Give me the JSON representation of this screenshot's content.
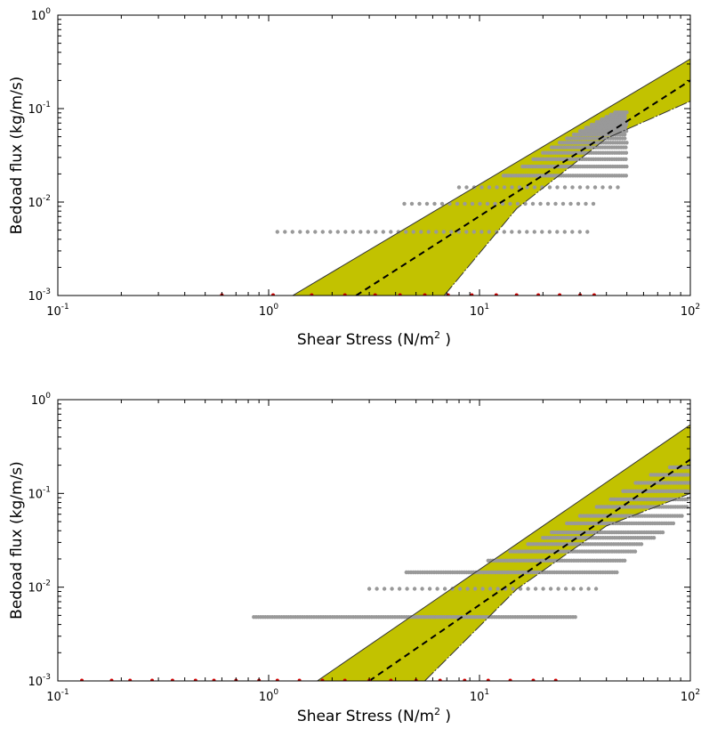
{
  "chart_data": [
    {
      "type": "scatter",
      "title": "",
      "xlabel": "Shear Stress (N/m",
      "xlabel_exp": "2",
      "xlabel_suffix": " )",
      "ylabel": "Bedoad flux (kg/m/s)",
      "xscale": "log",
      "yscale": "log",
      "xlim": [
        0.1,
        100
      ],
      "ylim": [
        0.001,
        1
      ],
      "xticks": [
        {
          "base": "10",
          "exp": "-1"
        },
        {
          "base": "10",
          "exp": "0"
        },
        {
          "base": "10",
          "exp": "1"
        },
        {
          "base": "10",
          "exp": "2"
        }
      ],
      "yticks": [
        {
          "base": "10",
          "exp": "-3"
        },
        {
          "base": "10",
          "exp": "-2"
        },
        {
          "base": "10",
          "exp": "-1"
        },
        {
          "base": "10",
          "exp": "0"
        }
      ],
      "grid": false,
      "fit": {
        "style": "dashed",
        "color": "#000000",
        "points": [
          [
            2.6,
            0.001
          ],
          [
            100,
            0.2
          ]
        ]
      },
      "band": {
        "color": "#c2c200",
        "edge": "#333333",
        "upper": [
          [
            1.3,
            0.001
          ],
          [
            100,
            0.34
          ]
        ],
        "lower": [
          [
            6.8,
            0.001
          ],
          [
            15,
            0.0085
          ],
          [
            40,
            0.048
          ],
          [
            100,
            0.12
          ]
        ]
      },
      "observed_color": "#999999",
      "observed_rows": [
        {
          "y": 0.0048,
          "x_from": 1.1,
          "x_to": 35,
          "pattern": "sparse"
        },
        {
          "y": 0.0096,
          "x_from": 4.4,
          "x_to": 36,
          "pattern": "sparse"
        },
        {
          "y": 0.0144,
          "x_from": 8.0,
          "x_to": 47,
          "pattern": "sparse"
        },
        {
          "y": 0.0192,
          "x_from": 13,
          "x_to": 50,
          "pattern": "dense"
        },
        {
          "y": 0.024,
          "x_from": 16,
          "x_to": 50,
          "pattern": "dense"
        },
        {
          "y": 0.0288,
          "x_from": 18,
          "x_to": 50,
          "pattern": "dense"
        },
        {
          "y": 0.0336,
          "x_from": 20,
          "x_to": 50,
          "pattern": "dense"
        },
        {
          "y": 0.0384,
          "x_from": 22,
          "x_to": 50,
          "pattern": "dense"
        },
        {
          "y": 0.0432,
          "x_from": 24,
          "x_to": 50,
          "pattern": "dense"
        },
        {
          "y": 0.048,
          "x_from": 26,
          "x_to": 50,
          "pattern": "dense"
        },
        {
          "y": 0.0528,
          "x_from": 28,
          "x_to": 50,
          "pattern": "dense"
        },
        {
          "y": 0.0576,
          "x_from": 30,
          "x_to": 50,
          "pattern": "dense"
        },
        {
          "y": 0.0624,
          "x_from": 32,
          "x_to": 50,
          "pattern": "dense"
        },
        {
          "y": 0.0672,
          "x_from": 34,
          "x_to": 50,
          "pattern": "dense"
        },
        {
          "y": 0.072,
          "x_from": 36,
          "x_to": 50,
          "pattern": "dense"
        },
        {
          "y": 0.0768,
          "x_from": 38,
          "x_to": 50,
          "pattern": "dense"
        },
        {
          "y": 0.0816,
          "x_from": 40,
          "x_to": 50,
          "pattern": "dense"
        },
        {
          "y": 0.0864,
          "x_from": 42,
          "x_to": 50,
          "pattern": "dense"
        },
        {
          "y": 0.0912,
          "x_from": 44,
          "x_to": 50,
          "pattern": "dense"
        }
      ],
      "zero_color": "#cc0000",
      "zero_points_x": [
        0.6,
        1.05,
        1.6,
        2.3,
        3.2,
        4.2,
        5.5,
        7.1,
        9.2,
        12,
        15,
        19,
        24,
        30,
        35
      ]
    },
    {
      "type": "scatter",
      "title": "",
      "xlabel": "Shear Stress (N/m",
      "xlabel_exp": "2",
      "xlabel_suffix": " )",
      "ylabel": "Bedoad flux (kg/m/s)",
      "xscale": "log",
      "yscale": "log",
      "xlim": [
        0.1,
        100
      ],
      "ylim": [
        0.001,
        1
      ],
      "xticks": [
        {
          "base": "10",
          "exp": "-1"
        },
        {
          "base": "10",
          "exp": "0"
        },
        {
          "base": "10",
          "exp": "1"
        },
        {
          "base": "10",
          "exp": "2"
        }
      ],
      "yticks": [
        {
          "base": "10",
          "exp": "-3"
        },
        {
          "base": "10",
          "exp": "-2"
        },
        {
          "base": "10",
          "exp": "-1"
        },
        {
          "base": "10",
          "exp": "0"
        }
      ],
      "grid": false,
      "fit": {
        "style": "dashed",
        "color": "#000000",
        "points": [
          [
            3.0,
            0.001
          ],
          [
            100,
            0.23
          ]
        ]
      },
      "band": {
        "color": "#c2c200",
        "edge": "#333333",
        "upper": [
          [
            1.7,
            0.001
          ],
          [
            100,
            0.54
          ]
        ],
        "lower": [
          [
            5.5,
            0.001
          ],
          [
            15,
            0.0095
          ],
          [
            40,
            0.045
          ],
          [
            100,
            0.1
          ]
        ]
      },
      "observed_color": "#999999",
      "observed_rows": [
        {
          "y": 0.0048,
          "x_from": 0.85,
          "x_to": 29,
          "pattern": "dense"
        },
        {
          "y": 0.0096,
          "x_from": 3.0,
          "x_to": 36,
          "pattern": "sparse"
        },
        {
          "y": 0.0144,
          "x_from": 4.5,
          "x_to": 45,
          "pattern": "dense"
        },
        {
          "y": 0.0192,
          "x_from": 11,
          "x_to": 50,
          "pattern": "dense"
        },
        {
          "y": 0.024,
          "x_from": 14,
          "x_to": 55,
          "pattern": "dense"
        },
        {
          "y": 0.0288,
          "x_from": 17,
          "x_to": 60,
          "pattern": "dense"
        },
        {
          "y": 0.0336,
          "x_from": 20,
          "x_to": 68,
          "pattern": "dense"
        },
        {
          "y": 0.0384,
          "x_from": 22,
          "x_to": 75,
          "pattern": "dense"
        },
        {
          "y": 0.048,
          "x_from": 26,
          "x_to": 85,
          "pattern": "dense"
        },
        {
          "y": 0.0576,
          "x_from": 30,
          "x_to": 92,
          "pattern": "dense"
        },
        {
          "y": 0.072,
          "x_from": 36,
          "x_to": 98,
          "pattern": "dense"
        },
        {
          "y": 0.0864,
          "x_from": 42,
          "x_to": 100,
          "pattern": "dense"
        },
        {
          "y": 0.1056,
          "x_from": 48,
          "x_to": 100,
          "pattern": "dense"
        },
        {
          "y": 0.1296,
          "x_from": 55,
          "x_to": 100,
          "pattern": "dense"
        },
        {
          "y": 0.158,
          "x_from": 65,
          "x_to": 100,
          "pattern": "dense"
        },
        {
          "y": 0.19,
          "x_from": 80,
          "x_to": 100,
          "pattern": "dense"
        }
      ],
      "zero_color": "#cc0000",
      "zero_points_x": [
        0.13,
        0.18,
        0.22,
        0.28,
        0.35,
        0.45,
        0.55,
        0.7,
        0.9,
        1.1,
        1.4,
        1.8,
        2.3,
        3.0,
        3.8,
        5.0,
        6.5,
        8.5,
        11,
        14,
        18,
        23
      ]
    }
  ]
}
